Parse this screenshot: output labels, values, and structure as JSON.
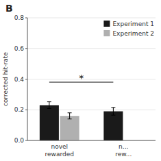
{
  "chart_data": {
    "type": "bar",
    "title": "B",
    "ylabel": "corrected hit-rate",
    "categories": [
      "novel\nrewarded",
      "n...\nrew..."
    ],
    "series": [
      {
        "name": "Experiment 1",
        "color": "#1a1a1a",
        "values": [
          0.23,
          0.19
        ],
        "errors": [
          0.022,
          0.025
        ]
      },
      {
        "name": "Experiment 2",
        "color": "#b0b0b0",
        "values": [
          0.16,
          null
        ],
        "errors": [
          0.02,
          null
        ]
      }
    ],
    "ylim": [
      0.0,
      0.8
    ],
    "yticks": [
      {
        "value": 0.0,
        "label": "0.0"
      },
      0.2,
      0.4,
      0.6,
      0.8
    ],
    "legend": "upper right",
    "annotations": [
      {
        "text": "*",
        "y": 0.38
      }
    ]
  }
}
